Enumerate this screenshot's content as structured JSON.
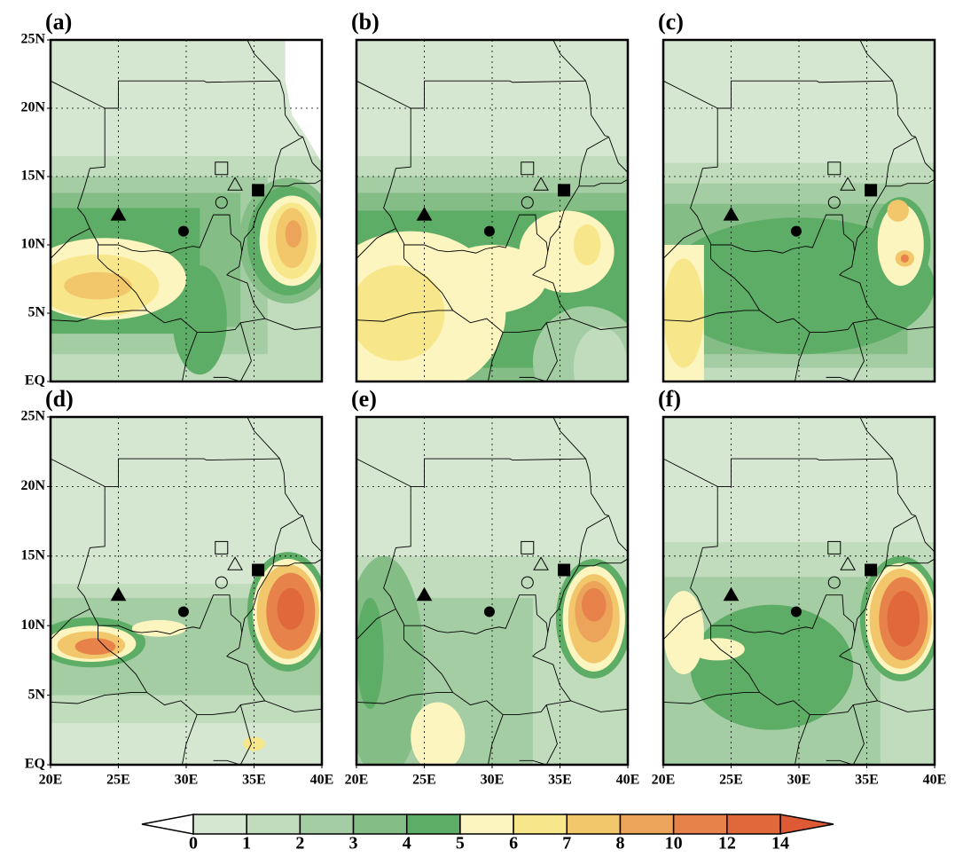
{
  "panels": [
    {
      "label": "(a)"
    },
    {
      "label": "(b)"
    },
    {
      "label": "(c)"
    },
    {
      "label": "(d)"
    },
    {
      "label": "(e)"
    },
    {
      "label": "(f)"
    }
  ],
  "lat_ticks": [
    {
      "value": 0,
      "label": "EQ"
    },
    {
      "value": 5,
      "label": "5N"
    },
    {
      "value": 10,
      "label": "10N"
    },
    {
      "value": 15,
      "label": "15N"
    },
    {
      "value": 20,
      "label": "20N"
    },
    {
      "value": 25,
      "label": "25N"
    }
  ],
  "lon_ticks": [
    {
      "value": 20,
      "label": "20E"
    },
    {
      "value": 25,
      "label": "25E"
    },
    {
      "value": 30,
      "label": "30E"
    },
    {
      "value": 35,
      "label": "35E"
    },
    {
      "value": 40,
      "label": "40E"
    }
  ],
  "colorbar": {
    "levels": [
      0,
      1,
      2,
      3,
      4,
      5,
      6,
      7,
      8,
      10,
      12,
      14
    ],
    "colors": [
      "#d5e7d1",
      "#c0dcbd",
      "#a4cda3",
      "#84bd86",
      "#5ead66",
      "#fcf5c0",
      "#f8e78a",
      "#f2c76b",
      "#eca35a",
      "#e6824a",
      "#e0683b"
    ],
    "under_color": "#ffffff",
    "over_color": "#dd5a35"
  }
}
